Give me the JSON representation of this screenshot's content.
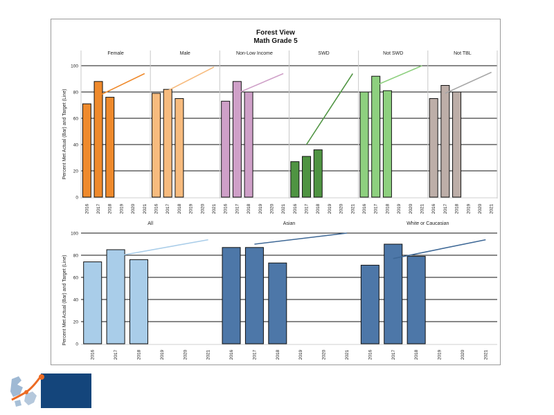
{
  "figure": {
    "title": "Forest View",
    "subtitle": "Math Grade 5",
    "ylabel": "Percent Met Actual (Bar) and Target (Line)"
  },
  "chart_data": [
    {
      "type": "bar",
      "title": "Forest View",
      "subtitle": "Math Grade 5",
      "ylabel": "Percent Met Actual (Bar) and Target (Line)",
      "ylim": [
        0,
        100
      ],
      "yticks": [
        0,
        20,
        40,
        60,
        80,
        100
      ],
      "grid": true,
      "categories": [
        "2016",
        "2017",
        "2018",
        "2019",
        "2020",
        "2021"
      ],
      "panels": [
        {
          "name": "Female",
          "color": "#ef8a2c",
          "values": [
            71,
            88,
            76,
            null,
            null,
            null
          ],
          "target_from": [
            2017,
            77
          ],
          "target_to": [
            2021,
            94
          ]
        },
        {
          "name": "Male",
          "color": "#f7bb7e",
          "values": [
            79,
            82,
            75,
            null,
            null,
            null
          ],
          "target_from": [
            2017,
            81
          ],
          "target_to": [
            2021,
            99
          ]
        },
        {
          "name": "Non-Low Income",
          "color": "#cfa0c8",
          "values": [
            73,
            88,
            80,
            null,
            null,
            null
          ],
          "target_from": [
            2017,
            79
          ],
          "target_to": [
            2021,
            94
          ]
        },
        {
          "name": "SWD",
          "color": "#4f9442",
          "values": [
            27,
            31,
            36,
            null,
            null,
            null
          ],
          "target_from": [
            2017,
            40
          ],
          "target_to": [
            2021,
            94
          ]
        },
        {
          "name": "Not SWD",
          "color": "#8ed07f",
          "values": [
            80,
            92,
            81,
            null,
            null,
            null
          ],
          "target_from": [
            2017,
            85
          ],
          "target_to": [
            2021,
            100
          ]
        },
        {
          "name": "Not TBL",
          "color": "#bdaea8",
          "values": [
            75,
            85,
            80,
            null,
            null,
            null
          ],
          "target_from": [
            2017,
            79
          ],
          "target_to": [
            2021,
            95
          ]
        }
      ]
    },
    {
      "type": "bar",
      "ylabel": "Percent Met Actual (Bar) and Target (Line)",
      "ylim": [
        0,
        100
      ],
      "yticks": [
        0,
        20,
        40,
        60,
        80,
        100
      ],
      "grid": true,
      "categories": [
        "2016",
        "2017",
        "2018",
        "2019",
        "2020",
        "2021"
      ],
      "panels": [
        {
          "name": "All",
          "color": "#a9cde9",
          "values": [
            74,
            85,
            76,
            null,
            null,
            null
          ],
          "target_from": [
            2017,
            79
          ],
          "target_to": [
            2021,
            94
          ]
        },
        {
          "name": "Asian",
          "color": "#4d77a8",
          "values": [
            87,
            87,
            73,
            null,
            null,
            null
          ],
          "target_from": [
            2017,
            90
          ],
          "target_to": [
            2021,
            100
          ]
        },
        {
          "name": "White or Caucasian",
          "color": "#4d77a8",
          "values": [
            71,
            90,
            79,
            null,
            null,
            null
          ],
          "target_from": [
            2017,
            77
          ],
          "target_to": [
            2021,
            94
          ]
        }
      ]
    }
  ],
  "colors": {
    "target_line_female": "#ef8a2c",
    "target_line_male": "#f7bb7e",
    "target_line_nonlow": "#cfa0c8",
    "target_line_swd": "#4f9442",
    "target_line_notswd": "#8ed07f",
    "target_line_nottbl": "#a7a7a7",
    "target_line_all": "#a9cde9",
    "target_line_asian": "#3e6896",
    "target_line_white": "#3e6896",
    "logo_navy": "#14457b",
    "logo_orange": "#ec6b24"
  },
  "logo": {
    "icon": "district-logo-icon"
  }
}
